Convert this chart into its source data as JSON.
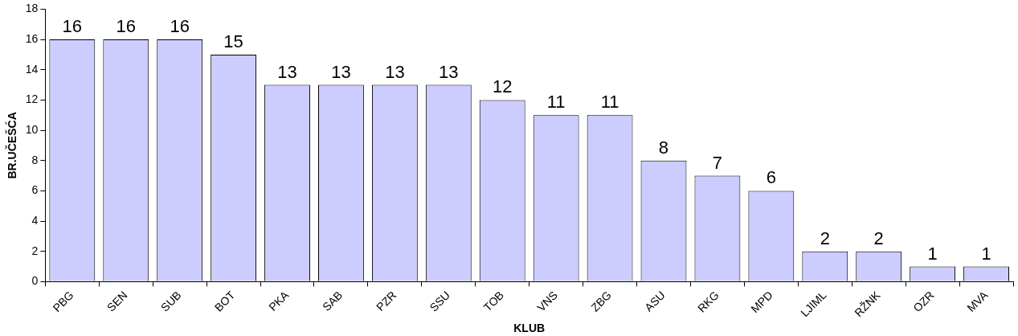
{
  "chart_data": {
    "type": "bar",
    "xlabel": "KLUB",
    "ylabel": "BR.UČEŠĆA",
    "categories": [
      "PBG",
      "SEN",
      "SUB",
      "BOT",
      "PKA",
      "SAB",
      "PZR",
      "SSU",
      "TOB",
      "VNS",
      "ZBG",
      "ASU",
      "RKG",
      "MPD",
      "LJIML",
      "RŽNK",
      "OZR",
      "MVA"
    ],
    "values": [
      16,
      16,
      16,
      15,
      13,
      13,
      13,
      13,
      12,
      11,
      11,
      8,
      7,
      6,
      2,
      2,
      1,
      1
    ],
    "color": "#ccccff",
    "ylim": [
      0,
      18
    ],
    "yticks": [
      0,
      2,
      4,
      6,
      8,
      10,
      12,
      14,
      16,
      18
    ],
    "grid": false,
    "legend": false,
    "data_labels": true
  }
}
